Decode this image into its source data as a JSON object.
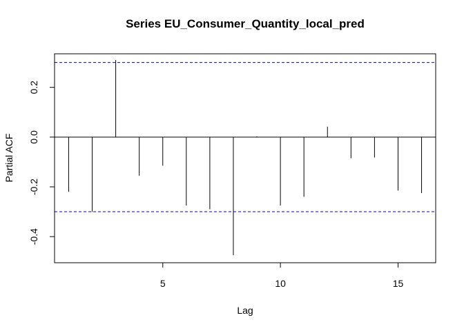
{
  "chart_data": {
    "type": "bar",
    "title": "Series  EU_Consumer_Quantity_local_pred",
    "xlabel": "Lag",
    "ylabel": "Partial ACF",
    "xlim": [
      0.4,
      16.6
    ],
    "ylim": [
      -0.505,
      0.335
    ],
    "x_ticks": [
      5,
      10,
      15
    ],
    "x_tick_labels": [
      "5",
      "10",
      "15"
    ],
    "y_ticks": [
      -0.4,
      -0.2,
      0.0,
      0.2
    ],
    "y_tick_labels": [
      "-0.4",
      "-0.2",
      "0.0",
      "0.2"
    ],
    "confidence_bound": 0.3,
    "confidence_color": "#0000cc",
    "grid": false,
    "legend": "none",
    "lags": [
      1,
      2,
      3,
      4,
      5,
      6,
      7,
      8,
      9,
      10,
      11,
      12,
      13,
      14,
      15,
      16
    ],
    "values": [
      -0.22,
      -0.3,
      0.31,
      -0.155,
      -0.115,
      -0.275,
      -0.29,
      -0.475,
      0.003,
      -0.275,
      -0.24,
      0.042,
      -0.085,
      -0.082,
      -0.215,
      -0.225
    ]
  }
}
